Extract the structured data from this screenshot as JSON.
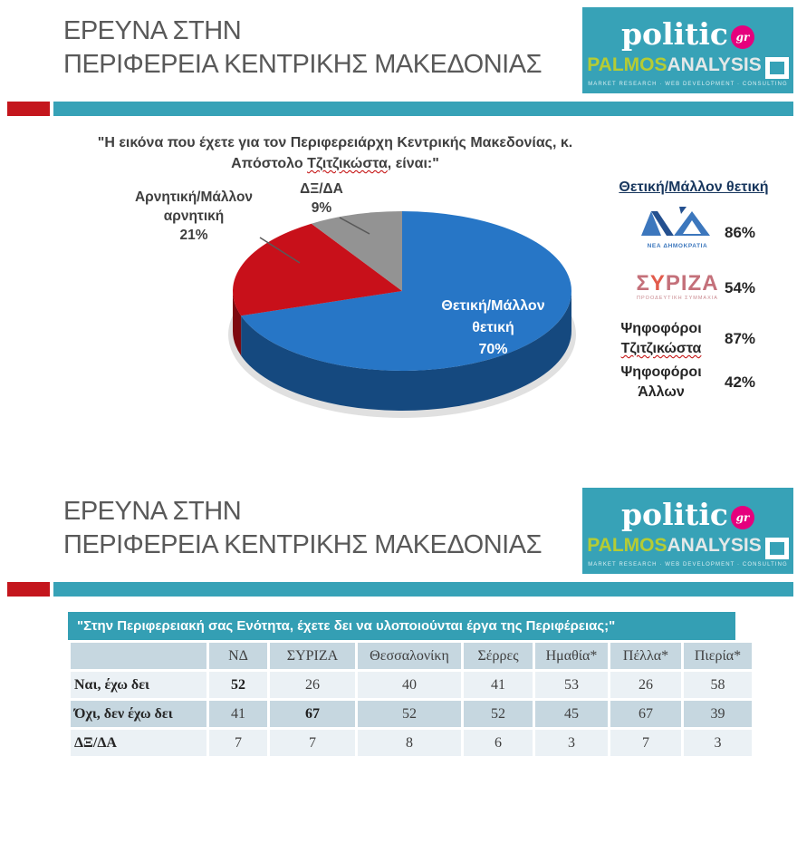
{
  "header": {
    "title_line1": "ΕΡΕΥΝΑ ΣΤΗΝ",
    "title_line2": "ΠΕΡΙΦΕΡΕΙΑ ΚΕΝΤΡΙΚΗΣ ΜΑΚΕΔΟΝΙΑΣ",
    "accent_red": "#C4161D",
    "accent_teal": "#37A2B7"
  },
  "logo": {
    "politic": "politic",
    "gr": "gr",
    "palmos": "PALMOS",
    "analysis": "ANALYSIS",
    "tagline": "MARKET RESEARCH · WEB DEVELOPMENT · CONSULTING",
    "background": "#37A2B7",
    "gr_circle_color": "#E5007D",
    "palmos_color": "#B5CC34"
  },
  "slide1": {
    "question": {
      "line1": "\"Η εικόνα που έχετε για τον Περιφερειάρχη Κεντρικής Μακεδονίας, κ.",
      "line2_pre": "Απόστολο ",
      "line2_word": "Τζιτζικώστα",
      "line2_post": ", είναι:\""
    },
    "breakdown": {
      "header": "Θετική/Μάλλον θετική",
      "nd": {
        "caption": "ΝΕΑ ΔΗΜΟΚΡΑΤΙΑ",
        "value": "86%"
      },
      "syriza": {
        "part_s": "Σ",
        "part_y": "Υ",
        "part_rest": "ΡΙΖΑ",
        "caption": "ΠΡΟΟΔΕΥΤΙΚΗ ΣΥΜΜΑΧΙΑ",
        "value": "54%"
      },
      "tzitzikostas": {
        "line1": "Ψηφοφόροι",
        "line2": "Τζιτζικώστα",
        "value": "87%"
      },
      "others": {
        "line1": "Ψηφοφόροι",
        "line2": "Άλλων",
        "value": "42%"
      }
    }
  },
  "chart_data": [
    {
      "type": "pie",
      "style": "3d",
      "title": "\"Η εικόνα που έχετε για τον Περιφερειάρχη Κεντρικής Μακεδονίας, κ. Απόστολο Τζιτζικώστα, είναι:\"",
      "labels": [
        "Θετική/Μάλλον θετική",
        "Αρνητική/Μάλλον αρνητική",
        "ΔΞ/ΔΑ"
      ],
      "values": [
        70,
        21,
        9
      ],
      "colors": [
        "#2776C6",
        "#C8101A",
        "#939393"
      ],
      "side_colors": [
        "#15497F",
        "#7E0A10",
        "#6B6B6B"
      ],
      "start_angle_deg": 0,
      "display_labels": {
        "positive": [
          "Θετική/Μάλλον",
          "θετική",
          "70%"
        ],
        "negative": [
          "Αρνητική/Μάλλον",
          "αρνητική",
          "21%"
        ],
        "dk": [
          "ΔΞ/ΔΑ",
          "9%"
        ]
      }
    },
    {
      "type": "table",
      "title": "\"Στην Περιφερειακή σας Ενότητα, έχετε δει να υλοποιούνται έργα της Περιφέρειας;\"",
      "columns": [
        "",
        "ΝΔ",
        "ΣΥΡΙΖΑ",
        "Θεσσαλονίκη",
        "Σέρρες",
        "Ημαθία*",
        "Πέλλα*",
        "Πιερία*"
      ],
      "rows": [
        {
          "label": "Ναι, έχω δει",
          "values": [
            52,
            26,
            40,
            41,
            53,
            26,
            58
          ],
          "bold_value_index": 0
        },
        {
          "label": "Όχι, δεν έχω δει",
          "values": [
            41,
            67,
            52,
            52,
            45,
            67,
            39
          ],
          "bold_value_index": 1
        },
        {
          "label": "ΔΞ/ΔΑ",
          "values": [
            7,
            7,
            8,
            6,
            3,
            7,
            3
          ],
          "bold_value_index": null
        }
      ]
    }
  ]
}
